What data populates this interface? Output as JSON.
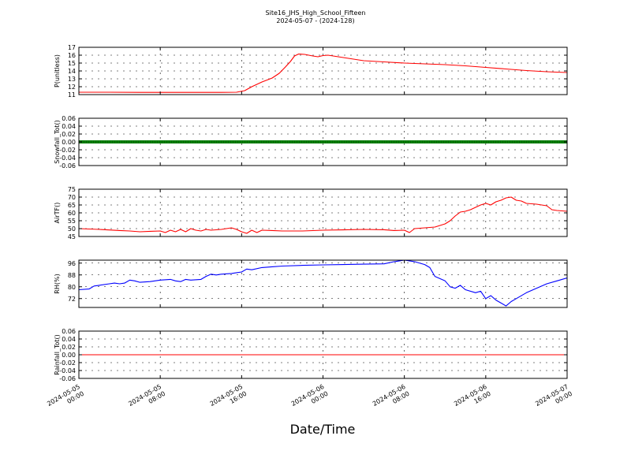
{
  "figure": {
    "title_line1": "Site16_JHS_High_School_Fifteen",
    "title_line2": "2024-05-07 - (2024-128)",
    "xlabel": "Date/Time"
  },
  "chart_data": [
    {
      "type": "line",
      "ylabel": "P(unitless)",
      "ylim": [
        11,
        17
      ],
      "yticks": [
        "11",
        "12",
        "13",
        "14",
        "15",
        "16",
        "17"
      ],
      "xlim": [
        0,
        48
      ],
      "x_tick_labels": [
        [
          "2024-05-05",
          "00:00"
        ],
        [
          "2024-05-05",
          "08:00"
        ],
        [
          "2024-05-05",
          "16:00"
        ],
        [
          "2024-05-06",
          "00:00"
        ],
        [
          "2024-05-06",
          "08:00"
        ],
        [
          "2024-05-06",
          "16:00"
        ],
        [
          "2024-05-07",
          "00:00"
        ]
      ],
      "grid": true,
      "series": [
        {
          "color": "#ff0000",
          "points": [
            [
              0,
              11.3
            ],
            [
              3,
              11.3
            ],
            [
              6,
              11.28
            ],
            [
              10,
              11.28
            ],
            [
              14,
              11.28
            ],
            [
              15.5,
              11.3
            ],
            [
              16.3,
              11.5
            ],
            [
              17,
              12
            ],
            [
              18,
              12.6
            ],
            [
              19,
              13.1
            ],
            [
              19.7,
              13.7
            ],
            [
              20.3,
              14.5
            ],
            [
              20.8,
              15.2
            ],
            [
              21.2,
              15.9
            ],
            [
              21.6,
              16.15
            ],
            [
              22.2,
              16.1
            ],
            [
              23,
              15.9
            ],
            [
              23.5,
              15.8
            ],
            [
              24,
              15.95
            ],
            [
              24.5,
              16
            ],
            [
              25,
              15.9
            ],
            [
              26,
              15.7
            ],
            [
              27,
              15.5
            ],
            [
              28,
              15.3
            ],
            [
              30,
              15.15
            ],
            [
              32,
              15
            ],
            [
              34,
              14.9
            ],
            [
              36,
              14.8
            ],
            [
              38,
              14.65
            ],
            [
              40,
              14.45
            ],
            [
              42,
              14.25
            ],
            [
              44,
              14.05
            ],
            [
              46,
              13.9
            ],
            [
              47,
              13.85
            ],
            [
              48,
              13.8
            ]
          ]
        }
      ]
    },
    {
      "type": "line",
      "ylabel": "Snowfall_Tot()",
      "ylim": [
        -0.06,
        0.06
      ],
      "yticks": [
        "-0.06",
        "-0.04",
        "-0.02",
        "0.00",
        "0.02",
        "0.04",
        "0.06"
      ],
      "xlim": [
        0,
        48
      ],
      "grid": true,
      "series": [
        {
          "color": "#008000",
          "marker": "thick",
          "points": [
            [
              0,
              0
            ],
            [
              48,
              0
            ]
          ]
        }
      ]
    },
    {
      "type": "line",
      "ylabel": "AirTF()",
      "ylim": [
        45,
        75
      ],
      "yticks": [
        "45",
        "50",
        "55",
        "60",
        "65",
        "70",
        "75"
      ],
      "xlim": [
        0,
        48
      ],
      "grid": true,
      "series": [
        {
          "color": "#ff0000",
          "points": [
            [
              0,
              50
            ],
            [
              2,
              49.5
            ],
            [
              4,
              48.8
            ],
            [
              5,
              48.5
            ],
            [
              6,
              48
            ],
            [
              7,
              48.3
            ],
            [
              8,
              48.5
            ],
            [
              8.5,
              47.5
            ],
            [
              9,
              49
            ],
            [
              9.5,
              48
            ],
            [
              10,
              49.5
            ],
            [
              10.5,
              48
            ],
            [
              11,
              50
            ],
            [
              11.5,
              49
            ],
            [
              12,
              48.5
            ],
            [
              12.5,
              49.5
            ],
            [
              13,
              49
            ],
            [
              14,
              49.5
            ],
            [
              15,
              50.5
            ],
            [
              15.5,
              49.5
            ],
            [
              16,
              48
            ],
            [
              16.5,
              47
            ],
            [
              17,
              49
            ],
            [
              17.5,
              47.5
            ],
            [
              18,
              49
            ],
            [
              19,
              48.8
            ],
            [
              20,
              48.5
            ],
            [
              22,
              48.5
            ],
            [
              24,
              49
            ],
            [
              26,
              49.2
            ],
            [
              28,
              49.5
            ],
            [
              30,
              49.3
            ],
            [
              31,
              48.8
            ],
            [
              32,
              49
            ],
            [
              32.5,
              47.5
            ],
            [
              33,
              50
            ],
            [
              34,
              50.5
            ],
            [
              35,
              51
            ],
            [
              36,
              53
            ],
            [
              36.5,
              55
            ],
            [
              37,
              58
            ],
            [
              37.5,
              60.5
            ],
            [
              38,
              61
            ],
            [
              38.5,
              62
            ],
            [
              39,
              63.5
            ],
            [
              39.5,
              65
            ],
            [
              40,
              66
            ],
            [
              40.5,
              65
            ],
            [
              41,
              67
            ],
            [
              41.5,
              68
            ],
            [
              42,
              69.5
            ],
            [
              42.5,
              70
            ],
            [
              43,
              68
            ],
            [
              43.5,
              67.5
            ],
            [
              44,
              66
            ],
            [
              45,
              65.5
            ],
            [
              46,
              64.5
            ],
            [
              46.5,
              62
            ],
            [
              47,
              61.5
            ],
            [
              48,
              61
            ],
            [
              48,
              59
            ]
          ]
        }
      ]
    },
    {
      "type": "line",
      "ylabel": "RH(%)",
      "ylim": [
        66,
        98
      ],
      "yticks": [
        "72",
        "80",
        "88",
        "96"
      ],
      "xlim": [
        0,
        48
      ],
      "grid": true,
      "series": [
        {
          "color": "#0000ff",
          "points": [
            [
              0,
              78
            ],
            [
              1,
              78.5
            ],
            [
              1.5,
              80.5
            ],
            [
              2,
              81
            ],
            [
              3,
              82
            ],
            [
              3.5,
              82.5
            ],
            [
              4,
              82
            ],
            [
              4.5,
              82.5
            ],
            [
              5,
              84.5
            ],
            [
              5.5,
              84
            ],
            [
              6,
              83
            ],
            [
              7,
              83.5
            ],
            [
              8,
              84.5
            ],
            [
              9,
              85
            ],
            [
              9.5,
              84
            ],
            [
              10,
              83.5
            ],
            [
              10.5,
              85
            ],
            [
              11,
              84.5
            ],
            [
              12,
              85
            ],
            [
              12.5,
              87
            ],
            [
              13,
              88.5
            ],
            [
              13.5,
              88
            ],
            [
              14,
              88.5
            ],
            [
              15,
              89
            ],
            [
              15.5,
              89.5
            ],
            [
              16,
              90
            ],
            [
              16.5,
              92
            ],
            [
              17,
              91.5
            ],
            [
              18,
              93
            ],
            [
              19,
              93.5
            ],
            [
              20,
              94
            ],
            [
              22,
              94.5
            ],
            [
              24,
              94.8
            ],
            [
              26,
              95
            ],
            [
              28,
              95.3
            ],
            [
              30,
              95.5
            ],
            [
              31,
              97
            ],
            [
              32,
              98
            ],
            [
              33,
              97
            ],
            [
              34,
              95
            ],
            [
              34.5,
              93
            ],
            [
              35,
              87
            ],
            [
              36,
              84
            ],
            [
              36.5,
              80
            ],
            [
              37,
              79
            ],
            [
              37.5,
              81
            ],
            [
              38,
              78
            ],
            [
              39,
              76
            ],
            [
              39.5,
              77
            ],
            [
              40,
              72
            ],
            [
              40.5,
              74
            ],
            [
              41,
              71
            ],
            [
              41.5,
              69
            ],
            [
              42,
              67
            ],
            [
              42.5,
              70
            ],
            [
              43,
              72
            ],
            [
              44,
              76
            ],
            [
              45,
              79
            ],
            [
              46,
              82
            ],
            [
              47,
              84
            ],
            [
              48,
              86
            ]
          ]
        }
      ]
    },
    {
      "type": "line",
      "ylabel": "Rainfall_Tot()",
      "ylim": [
        -0.06,
        0.06
      ],
      "yticks": [
        "-0.06",
        "-0.04",
        "-0.02",
        "0.00",
        "0.02",
        "0.04",
        "0.06"
      ],
      "xlim": [
        0,
        48
      ],
      "grid": true,
      "series": [
        {
          "color": "#ff0000",
          "points": [
            [
              0,
              0
            ],
            [
              48,
              0
            ]
          ]
        }
      ]
    }
  ]
}
